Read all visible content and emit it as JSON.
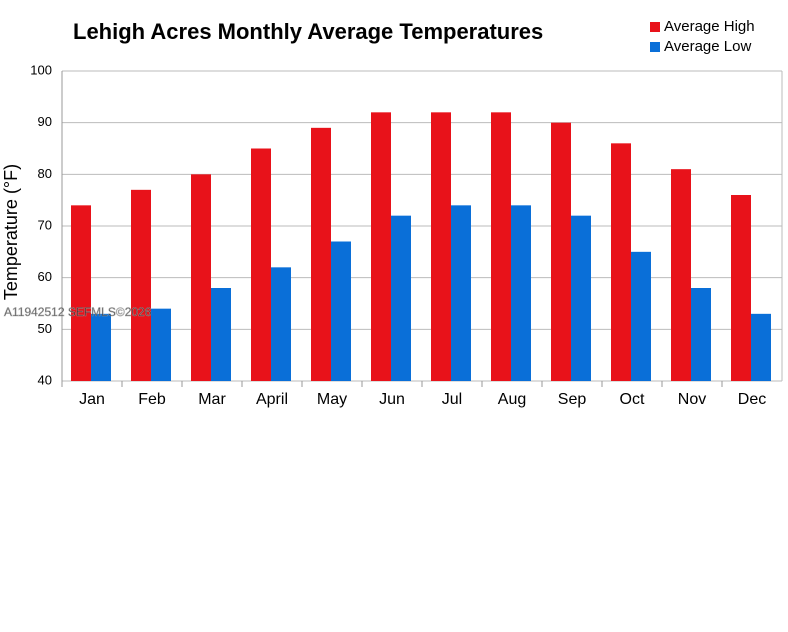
{
  "chart_data": {
    "type": "bar",
    "title": "Lehigh Acres Monthly Average Temperatures",
    "y_label": "Temperature (°F)",
    "categories": [
      "Jan",
      "Feb",
      "Mar",
      "April",
      "May",
      "Jun",
      "Jul",
      "Aug",
      "Sep",
      "Oct",
      "Nov",
      "Dec"
    ],
    "series": [
      {
        "name": "Average High",
        "color": "#e8121a",
        "values": [
          74,
          77,
          80,
          85,
          89,
          92,
          92,
          92,
          90,
          86,
          81,
          76
        ]
      },
      {
        "name": "Average Low",
        "color": "#0a6fd8",
        "values": [
          53,
          54,
          58,
          62,
          67,
          72,
          74,
          74,
          72,
          65,
          58,
          53
        ]
      }
    ],
    "ylim": [
      40,
      100
    ],
    "yticks": [
      40,
      50,
      60,
      70,
      80,
      90,
      100
    ],
    "grid": true,
    "legend": "top-right",
    "watermark": "A11942512 SEFMLS©2026"
  }
}
